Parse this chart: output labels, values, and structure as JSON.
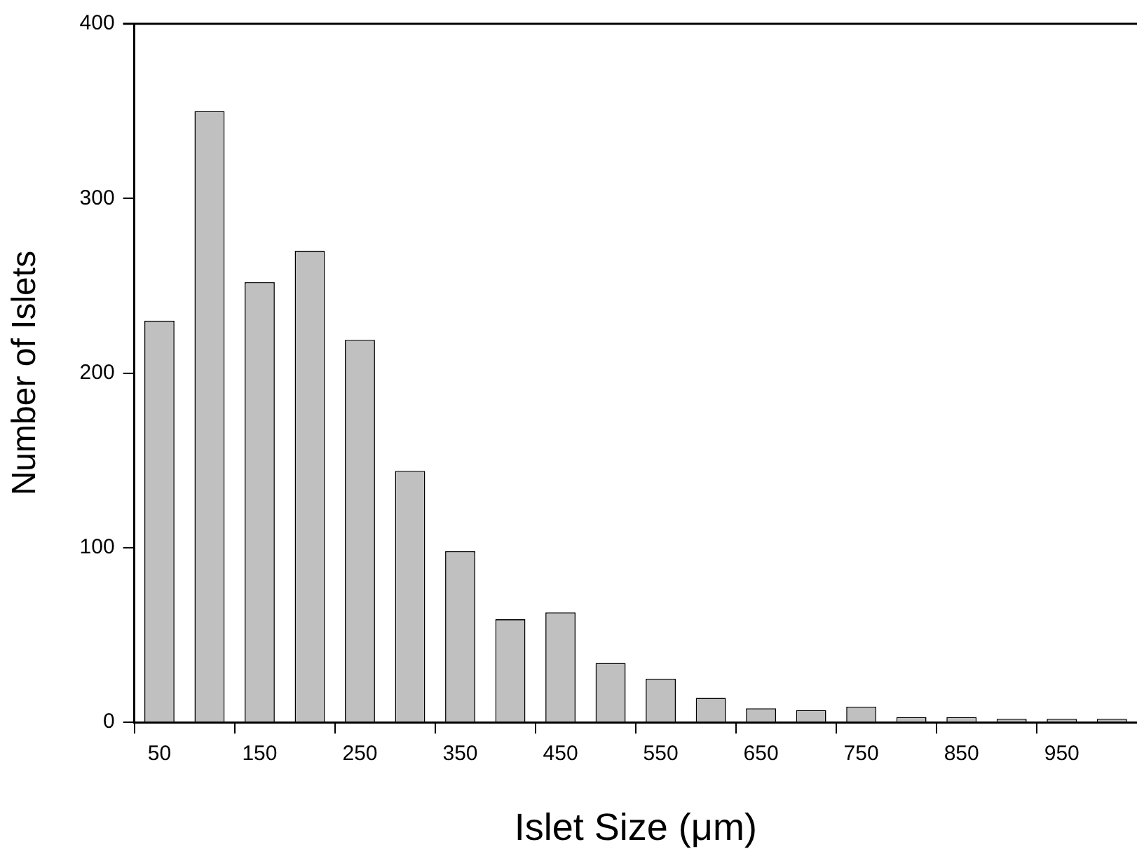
{
  "chart_data": {
    "type": "bar",
    "xlabel": "Islet Size (μm)",
    "ylabel": "Number of Islets",
    "categories": [
      "50",
      null,
      "150",
      null,
      "250",
      null,
      "350",
      null,
      "450",
      null,
      "550",
      null,
      "650",
      null,
      "750",
      null,
      "850",
      null,
      "950",
      null
    ],
    "values": [
      230,
      350,
      252,
      270,
      219,
      144,
      98,
      59,
      63,
      34,
      25,
      14,
      8,
      7,
      9,
      3,
      3,
      2,
      2,
      2
    ],
    "color": "#c0c0c0",
    "ylim": [
      0,
      400
    ],
    "yticks": [
      0,
      100,
      200,
      300,
      400
    ],
    "grid": false,
    "legend": false
  }
}
